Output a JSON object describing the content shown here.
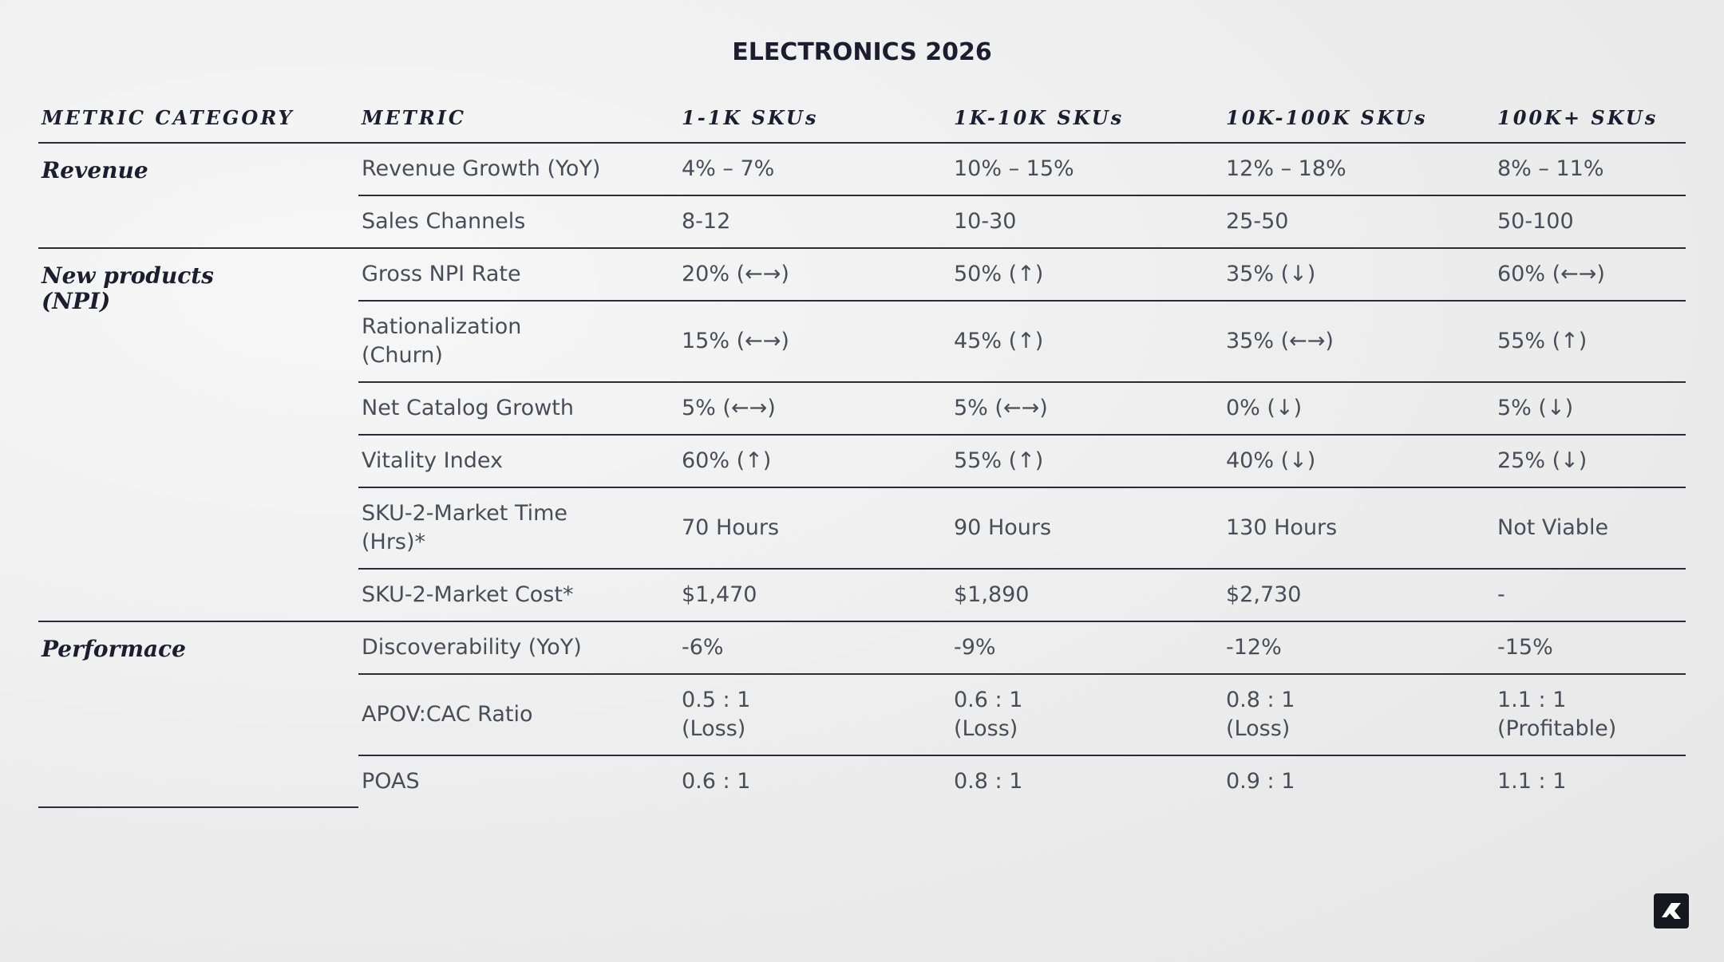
{
  "title": "ELECTRONICS 2026",
  "table": {
    "header": [
      "METRIC CATEGORY",
      "METRIC",
      "1-1K SKUs",
      "1K-10K SKUs",
      "10K-100K SKUs",
      "100K+ SKUs"
    ],
    "groups": [
      {
        "category": "Revenue",
        "rows": [
          [
            "Revenue Growth (YoY)",
            "4% – 7%",
            "10% – 15%",
            "12% – 18%",
            "8% – 11%"
          ],
          [
            "Sales Channels",
            "8-12",
            "10-30",
            "25-50",
            "50-100"
          ]
        ]
      },
      {
        "category": "New products\n(NPI)",
        "rows": [
          [
            "Gross NPI Rate",
            "20% (←→)",
            "50% (↑)",
            "35% (↓)",
            "60% (←→)"
          ],
          [
            "Rationalization\n(Churn)",
            "15% (←→)",
            "45% (↑)",
            "35% (←→)",
            "55% (↑)"
          ],
          [
            "Net Catalog Growth",
            "5% (←→)",
            "5% (←→)",
            "0% (↓)",
            "5% (↓)"
          ],
          [
            "Vitality Index",
            "60% (↑)",
            "55% (↑)",
            "40% (↓)",
            "25% (↓)"
          ],
          [
            "SKU-2-Market Time\n(Hrs)*",
            "70 Hours",
            "90 Hours",
            "130 Hours",
            "Not Viable"
          ],
          [
            "SKU-2-Market Cost*",
            "$1,470",
            "$1,890",
            "$2,730",
            "-"
          ]
        ]
      },
      {
        "category": "Performace",
        "rows": [
          [
            "Discoverability (YoY)",
            "-6%",
            "-9%",
            "-12%",
            "-15%"
          ],
          [
            "APOV:CAC Ratio",
            "0.5 : 1\n(Loss)",
            "0.6 : 1\n(Loss)",
            "0.8 : 1\n(Loss)",
            "1.1 : 1\n(Profitable)"
          ],
          [
            "POAS",
            "0.6 : 1",
            "0.8 : 1",
            "0.9 : 1",
            "1.1 : 1"
          ]
        ]
      }
    ]
  }
}
